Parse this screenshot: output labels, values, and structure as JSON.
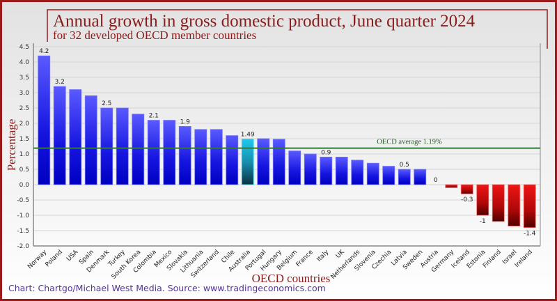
{
  "chart_data": {
    "type": "bar",
    "title": "Annual growth in gross domestic product, June quarter 2024",
    "subtitle": "for 32 developed OECD member countries",
    "xlabel": "OECD countries",
    "ylabel": "Percentage",
    "ylim": [
      -2.0,
      4.5
    ],
    "yticks": [
      "-2.0",
      "-1.5",
      "-1.0",
      "-0.5",
      "0.0",
      "0.5",
      "1.0",
      "1.5",
      "2.0",
      "2.5",
      "3.0",
      "3.5",
      "4.0",
      "4.5"
    ],
    "grid": true,
    "categories": [
      "Norway",
      "Poland",
      "USA",
      "Spain",
      "Denmark",
      "Turkey",
      "South Korea",
      "Colombia",
      "Mexico",
      "Slovakia",
      "Lithuania",
      "Switzerland",
      "Chile",
      "Australia",
      "Portugal",
      "Hungary",
      "Belgium",
      "France",
      "Italy",
      "UK",
      "Netherlands",
      "Slovenia",
      "Czechia",
      "Latvia",
      "Sweden",
      "Austria",
      "Germany",
      "Iceland",
      "Estonia",
      "Finland",
      "Israel",
      "Ireland"
    ],
    "values": [
      4.2,
      3.2,
      3.1,
      2.9,
      2.5,
      2.5,
      2.3,
      2.1,
      2.1,
      1.9,
      1.8,
      1.8,
      1.6,
      1.49,
      1.5,
      1.48,
      1.1,
      1.0,
      0.9,
      0.9,
      0.8,
      0.7,
      0.6,
      0.5,
      0.5,
      0,
      -0.1,
      -0.3,
      -1.0,
      -1.2,
      -1.35,
      -1.4
    ],
    "data_labels": [
      "4.2",
      "3.2",
      null,
      null,
      "2.5",
      null,
      null,
      "2.1",
      null,
      "1.9",
      null,
      null,
      null,
      "1.49",
      null,
      null,
      null,
      null,
      "0.9",
      null,
      null,
      null,
      null,
      "0.5",
      null,
      "0",
      null,
      "-0.3",
      "-1",
      null,
      null,
      "-1.4"
    ],
    "highlight": "Australia",
    "reference_line": {
      "label": "OECD average 1.19%",
      "value": 1.19,
      "color": "#2e7d32"
    },
    "colors": {
      "positive": "#2a2aff",
      "highlight": "#1ec8e8",
      "negative": "#dd1111",
      "title": "#8b1a1a",
      "frame": "#9b1b1b"
    }
  },
  "footer": {
    "credit": "Chart: Chartgo/Michael West Media. Source: www.tradingeconomics.com"
  }
}
